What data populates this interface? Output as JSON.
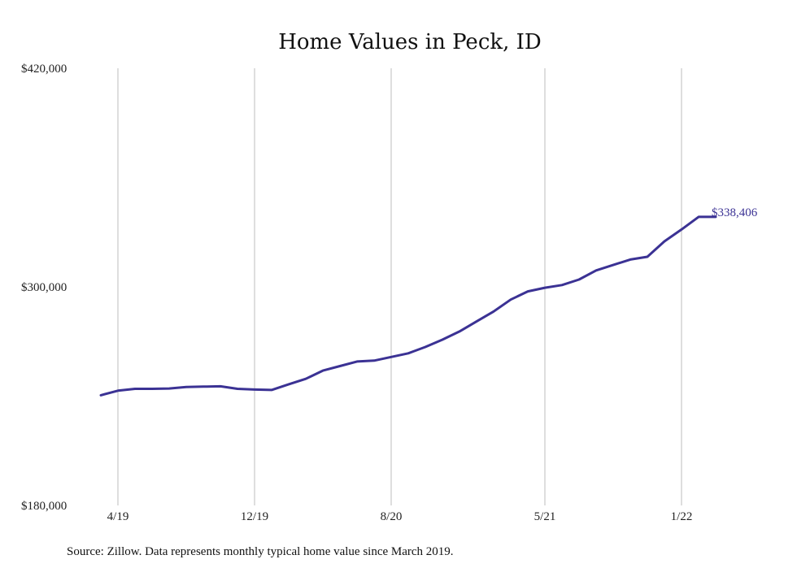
{
  "chart_data": {
    "type": "line",
    "title": "Home Values in Peck, ID",
    "xlabel": "",
    "ylabel": "",
    "ylim": [
      180000,
      420000
    ],
    "yticks": [
      {
        "value": 180000,
        "label": "$180,000"
      },
      {
        "value": 300000,
        "label": "$300,000"
      },
      {
        "value": 420000,
        "label": "$420,000"
      }
    ],
    "xticks": [
      {
        "date": "2019-04",
        "label": "4/19"
      },
      {
        "date": "2019-12",
        "label": "12/19"
      },
      {
        "date": "2020-08",
        "label": "8/20"
      },
      {
        "date": "2021-05",
        "label": "5/21"
      },
      {
        "date": "2022-01",
        "label": "1/22"
      }
    ],
    "grid": "vertical",
    "series": [
      {
        "color": "#3b3294",
        "x": [
          "2019-03",
          "2019-04",
          "2019-05",
          "2019-06",
          "2019-07",
          "2019-08",
          "2019-09",
          "2019-10",
          "2019-11",
          "2019-12",
          "2020-01",
          "2020-02",
          "2020-03",
          "2020-04",
          "2020-05",
          "2020-06",
          "2020-07",
          "2020-08",
          "2020-09",
          "2020-10",
          "2020-11",
          "2020-12",
          "2021-01",
          "2021-02",
          "2021-03",
          "2021-04",
          "2021-05",
          "2021-06",
          "2021-07",
          "2021-08",
          "2021-09",
          "2021-10",
          "2021-11",
          "2021-12",
          "2022-01",
          "2022-02",
          "2022-03"
        ],
        "values": [
          240500,
          243000,
          244000,
          244000,
          244200,
          245000,
          245200,
          245400,
          244000,
          243600,
          243400,
          246500,
          249500,
          254000,
          256500,
          259000,
          259500,
          261500,
          263500,
          267000,
          271000,
          275500,
          281000,
          286500,
          293000,
          297500,
          299500,
          301000,
          304000,
          309000,
          312000,
          315000,
          316500,
          325000,
          331500,
          338406,
          338406
        ]
      }
    ],
    "end_label": "$338,406"
  },
  "source_note": "Source: Zillow. Data represents monthly typical home value since March 2019."
}
